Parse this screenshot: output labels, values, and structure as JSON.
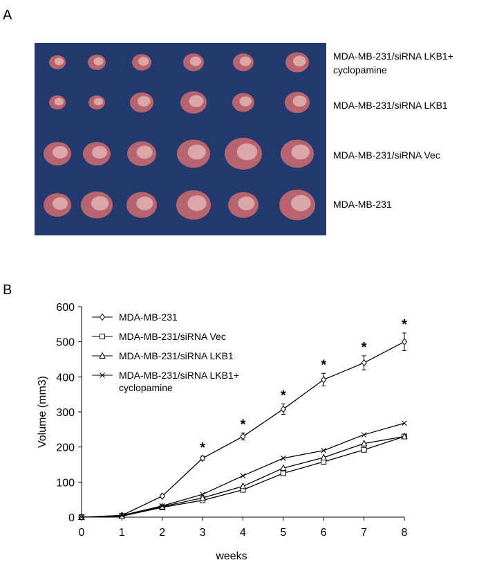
{
  "panel_a": {
    "label": "A",
    "rows": [
      "MDA-MB-231/siRNA LKB1+ cyclopamine",
      "MDA-MB-231/siRNA LKB1",
      "MDA-MB-231/siRNA Vec",
      "MDA-MB-231"
    ]
  },
  "panel_b": {
    "label": "B"
  },
  "chart_data": {
    "type": "line",
    "x_label": "weeks",
    "y_label": "Volume (mm3)",
    "x": [
      0,
      1,
      2,
      3,
      4,
      5,
      6,
      7,
      8
    ],
    "xlim": [
      0,
      8
    ],
    "xticks": [
      0,
      1,
      2,
      3,
      4,
      5,
      6,
      7,
      8
    ],
    "ylim": [
      0,
      600
    ],
    "yticks": [
      0,
      100,
      200,
      300,
      400,
      500,
      600
    ],
    "series": [
      {
        "name": "MDA-MB-231",
        "color": "#000000",
        "marker": "diamond",
        "values": [
          0,
          5,
          60,
          168,
          230,
          308,
          392,
          440,
          500
        ],
        "errors": [
          0,
          2,
          4,
          6,
          10,
          15,
          18,
          20,
          25
        ]
      },
      {
        "name": "MDA-MB-231/siRNA Vec",
        "color": "#000000",
        "marker": "square",
        "values": [
          0,
          3,
          28,
          48,
          78,
          125,
          158,
          192,
          230
        ]
      },
      {
        "name": "MDA-MB-231/siRNA LKB1",
        "color": "#000000",
        "marker": "triangle",
        "values": [
          0,
          3,
          30,
          55,
          88,
          140,
          170,
          210,
          230
        ]
      },
      {
        "name": "MDA-MB-231/siRNA LKB1+ cyclopamine",
        "color": "#000000",
        "marker": "x",
        "values": [
          0,
          5,
          32,
          65,
          118,
          168,
          190,
          235,
          268
        ]
      }
    ],
    "significance": {
      "label": "*",
      "x": [
        3,
        4,
        5,
        6,
        7,
        8
      ]
    }
  }
}
